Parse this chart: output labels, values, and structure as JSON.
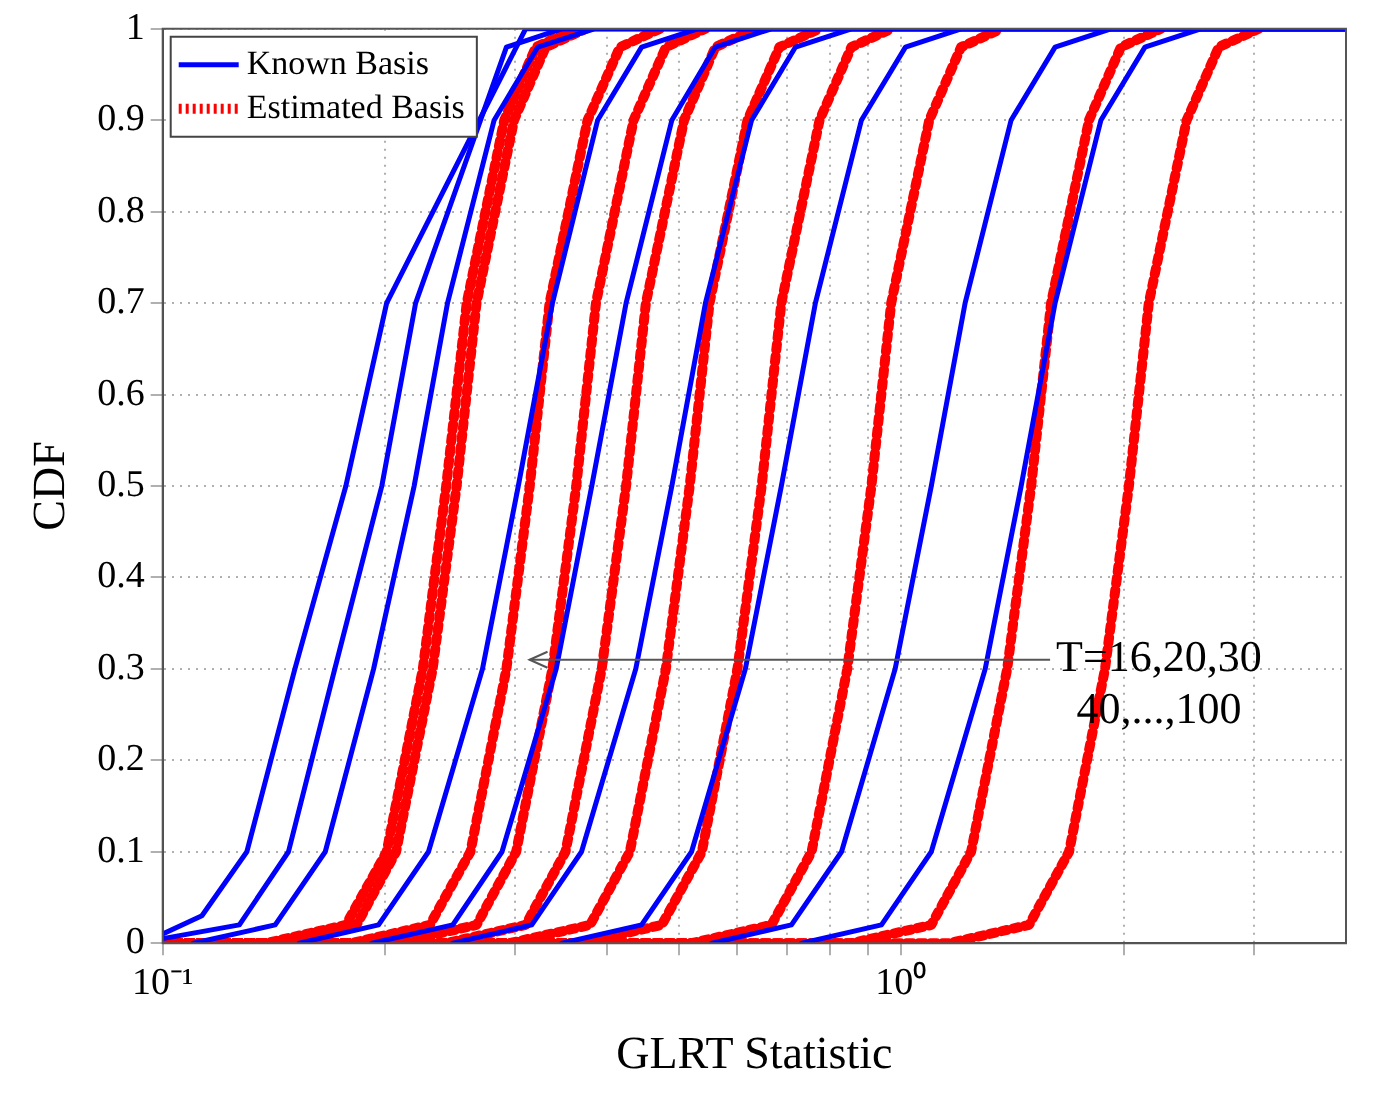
{
  "chart_data": {
    "type": "line",
    "xlabel": "GLRT Statistic",
    "ylabel": "CDF",
    "log": "x",
    "grid": true,
    "legend": "top left",
    "xlim": [
      0.1,
      4
    ],
    "ylim": [
      0,
      1
    ],
    "xticks": [
      {
        "value": 0.1,
        "label": "10⁻¹"
      },
      {
        "value": 0.2,
        "label": null
      },
      {
        "value": 0.3,
        "label": null
      },
      {
        "value": 0.4,
        "label": null
      },
      {
        "value": 0.5,
        "label": null
      },
      {
        "value": 0.6,
        "label": null
      },
      {
        "value": 0.7,
        "label": null
      },
      {
        "value": 0.8,
        "label": null
      },
      {
        "value": 0.9,
        "label": null
      },
      {
        "value": 1,
        "label": "10⁰"
      },
      {
        "value": 2,
        "label": null
      },
      {
        "value": 3,
        "label": null
      }
    ],
    "yticks": [
      0,
      0.1,
      0.2,
      0.3,
      0.4,
      0.5,
      0.6,
      0.7,
      0.8,
      0.9,
      1
    ],
    "annotations": [
      "T=16,20,30\n40,...,100"
    ],
    "series": [
      {
        "name": "Known Basis",
        "color": "#0000ff",
        "line_style": "solid",
        "x": [
          0.1,
          0.113,
          0.13,
          0.151,
          0.177,
          0.201,
          0.23,
          0.264,
          0.31,
          4
        ],
        "values": [
          0.01,
          0.03,
          0.1,
          0.3,
          0.5,
          0.7,
          null,
          null,
          1,
          1
        ]
      },
      {
        "color": "#0000ff",
        "line_style": "solid",
        "x": [
          0.1,
          0.127,
          0.148,
          0.171,
          0.198,
          0.22,
          0.254,
          0.292,
          0.347,
          4
        ],
        "values": [
          0.005,
          0.02,
          0.1,
          0.3,
          0.5,
          0.7,
          null,
          0.98,
          1,
          1
        ]
      },
      {
        "color": "#0000ff",
        "line_style": "solid",
        "x": [
          0.11,
          0.142,
          0.166,
          0.193,
          0.219,
          0.243,
          0.281,
          0.322,
          0.384,
          4
        ],
        "values": [
          0,
          0.02,
          0.1,
          0.3,
          0.5,
          0.7,
          0.9,
          0.98,
          1,
          1
        ]
      },
      {
        "color": "#0000ff",
        "line_style": "solid",
        "x": [
          0.153,
          0.196,
          0.229,
          0.271,
          0.303,
          0.337,
          0.388,
          0.445,
          0.53,
          4
        ],
        "values": [
          0,
          0.02,
          0.1,
          0.3,
          0.5,
          0.7,
          0.9,
          0.98,
          1,
          1
        ]
      },
      {
        "color": "#0000ff",
        "line_style": "solid",
        "x": [
          0.192,
          0.247,
          0.288,
          0.341,
          0.381,
          0.424,
          0.489,
          0.56,
          0.667,
          4
        ],
        "values": [
          0,
          0.02,
          0.1,
          0.3,
          0.5,
          0.7,
          0.9,
          0.98,
          1,
          1
        ]
      },
      {
        "color": "#0000ff",
        "line_style": "solid",
        "x": [
          0.247,
          0.316,
          0.369,
          0.437,
          0.489,
          0.543,
          0.627,
          0.719,
          0.856,
          4
        ],
        "values": [
          0,
          0.02,
          0.1,
          0.3,
          0.5,
          0.7,
          0.9,
          0.98,
          1,
          1
        ]
      },
      {
        "color": "#0000ff",
        "line_style": "solid",
        "x": [
          0.347,
          0.445,
          0.52,
          0.615,
          0.688,
          0.765,
          0.883,
          1.013,
          1.205,
          4
        ],
        "values": [
          0,
          0.02,
          0.1,
          0.3,
          0.5,
          0.7,
          0.9,
          0.98,
          1,
          1
        ]
      },
      {
        "color": "#0000ff",
        "line_style": "solid",
        "x": [
          0.554,
          0.71,
          0.83,
          0.981,
          1.098,
          1.22,
          1.408,
          1.615,
          1.922,
          4
        ],
        "values": [
          0,
          0.02,
          0.1,
          0.3,
          0.5,
          0.7,
          0.9,
          0.98,
          1,
          1
        ]
      },
      {
        "color": "#0000ff",
        "line_style": "solid",
        "x": [
          0.733,
          0.94,
          1.098,
          1.299,
          1.453,
          1.615,
          1.863,
          2.137,
          2.543,
          4
        ],
        "values": [
          0,
          0.02,
          0.1,
          0.3,
          0.5,
          0.7,
          0.9,
          0.98,
          1,
          1
        ]
      },
      {
        "name": "Estimated Basis",
        "color": "#ff0000",
        "line_style": "dotted",
        "x": [
          0.1,
          0.138,
          0.177,
          0.201,
          0.225,
          0.242,
          0.258,
          0.29,
          0.32,
          0.363
        ],
        "values": [
          0,
          0,
          0.02,
          0.1,
          0.3,
          0.5,
          0.7,
          0.9,
          0.98,
          1
        ]
      },
      {
        "color": "#ff0000",
        "line_style": "dotted",
        "x": [
          0.1,
          0.143,
          0.183,
          0.207,
          0.232,
          0.25,
          0.266,
          0.299,
          0.33,
          0.374
        ],
        "values": [
          0,
          0,
          0.02,
          0.1,
          0.3,
          0.5,
          0.7,
          0.9,
          0.98,
          1
        ]
      },
      {
        "color": "#ff0000",
        "line_style": "dotted",
        "x": [
          0.1,
          0.18,
          0.23,
          0.261,
          0.292,
          0.314,
          0.334,
          0.376,
          0.416,
          0.471
        ],
        "values": [
          0,
          0,
          0.02,
          0.1,
          0.3,
          0.5,
          0.7,
          0.9,
          0.98,
          1
        ]
      },
      {
        "color": "#ff0000",
        "line_style": "dotted",
        "x": [
          0.1,
          0.207,
          0.266,
          0.301,
          0.337,
          0.363,
          0.386,
          0.434,
          0.48,
          0.543
        ],
        "values": [
          0,
          0,
          0.02,
          0.1,
          0.3,
          0.5,
          0.7,
          0.9,
          0.98,
          1
        ]
      },
      {
        "color": "#ff0000",
        "line_style": "dotted",
        "x": [
          0.1,
          0.242,
          0.31,
          0.351,
          0.393,
          0.424,
          0.451,
          0.508,
          0.56,
          0.635
        ],
        "values": [
          0,
          0,
          0.02,
          0.1,
          0.3,
          0.5,
          0.7,
          0.9,
          0.98,
          1
        ]
      },
      {
        "color": "#ff0000",
        "line_style": "dotted",
        "x": [
          0.1,
          0.295,
          0.379,
          0.429,
          0.48,
          0.517,
          0.55,
          0.619,
          0.684,
          0.775
        ],
        "values": [
          0,
          0,
          0.02,
          0.1,
          0.3,
          0.5,
          0.7,
          0.9,
          0.98,
          1
        ]
      },
      {
        "color": "#ff0000",
        "line_style": "dotted",
        "x": [
          0.1,
          0.369,
          0.474,
          0.537,
          0.6,
          0.647,
          0.688,
          0.775,
          0.856,
          0.969
        ],
        "values": [
          0,
          0,
          0.02,
          0.1,
          0.3,
          0.5,
          0.7,
          0.9,
          0.98,
          1
        ]
      },
      {
        "color": "#ff0000",
        "line_style": "dotted",
        "x": [
          0.1,
          0.52,
          0.667,
          0.756,
          0.845,
          0.911,
          0.969,
          1.091,
          1.205,
          1.365
        ],
        "values": [
          0,
          0,
          0.02,
          0.1,
          0.3,
          0.5,
          0.7,
          0.9,
          0.98,
          1
        ]
      },
      {
        "color": "#ff0000",
        "line_style": "dotted",
        "x": [
          0.1,
          0.856,
          1.098,
          1.243,
          1.391,
          1.499,
          1.595,
          1.795,
          1.983,
          2.246
        ],
        "values": [
          0,
          0,
          0.02,
          0.1,
          0.3,
          0.5,
          0.7,
          0.9,
          0.98,
          1
        ]
      },
      {
        "color": "#ff0000",
        "line_style": "dotted",
        "x": [
          0.1,
          1.161,
          1.489,
          1.687,
          1.887,
          2.033,
          2.163,
          2.434,
          2.69,
          3.047
        ],
        "values": [
          0,
          0,
          0.02,
          0.1,
          0.3,
          0.5,
          0.7,
          0.9,
          0.98,
          1
        ]
      }
    ]
  }
}
